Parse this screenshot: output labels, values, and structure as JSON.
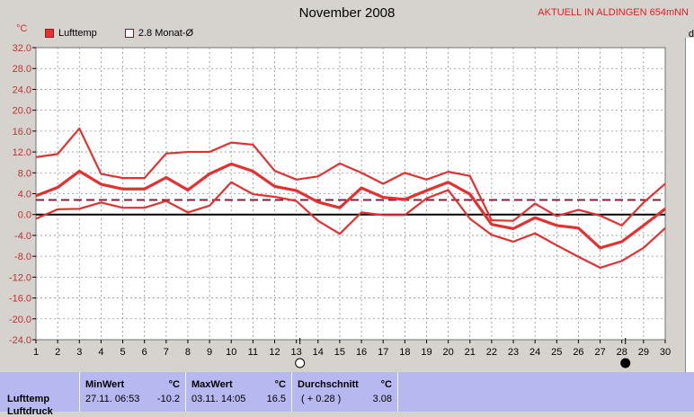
{
  "title": "November 2008",
  "location": "AKTUELL IN ALDINGEN 654mNN",
  "unit_label": "°C",
  "right_cut_label": "d",
  "legend": [
    {
      "label": "Lufttemp",
      "color": "#e53030"
    },
    {
      "label": "2.8 Monat-Ø",
      "color": "#802040"
    }
  ],
  "colors": {
    "series": "#e53030",
    "avg_line": "#802040",
    "zero_line": "#000000",
    "grid": "#909090"
  },
  "chart_data": {
    "type": "line",
    "x": [
      1,
      2,
      3,
      4,
      5,
      6,
      7,
      8,
      9,
      10,
      11,
      12,
      13,
      14,
      15,
      16,
      17,
      18,
      19,
      20,
      21,
      22,
      23,
      24,
      25,
      26,
      27,
      28,
      29,
      30
    ],
    "xlim": [
      1,
      30
    ],
    "ylim": [
      -24,
      32
    ],
    "yticks": [
      "32.0",
      "28.0",
      "24.0",
      "20.0",
      "16.0",
      "12.0",
      "8.0",
      "4.0",
      "0.0",
      "-4.0",
      "-8.0",
      "-12.0",
      "-16.0",
      "-20.0",
      "-24.0"
    ],
    "grid": true,
    "reference_lines": [
      {
        "y": 2.8,
        "style": "dashed"
      },
      {
        "y": 0,
        "style": "solid"
      }
    ],
    "series": [
      {
        "values": [
          11.0,
          11.6,
          16.5,
          7.8,
          7.0,
          7.0,
          11.7,
          12.0,
          12.0,
          13.8,
          13.4,
          8.4,
          6.7,
          7.3,
          9.8,
          8.0,
          5.9,
          8.0,
          6.7,
          8.2,
          7.4,
          -1.1,
          -1.2,
          2.1,
          -0.3,
          0.9,
          -0.2,
          -2.1,
          2.3,
          5.9
        ]
      },
      {
        "values": [
          3.6,
          5.2,
          8.3,
          5.8,
          4.9,
          4.9,
          7.1,
          4.7,
          7.8,
          9.7,
          8.3,
          5.4,
          4.6,
          2.4,
          1.3,
          5.1,
          3.3,
          2.9,
          4.6,
          6.2,
          3.9,
          -1.9,
          -2.7,
          -0.6,
          -2.1,
          -2.6,
          -6.4,
          -5.2,
          -2.1,
          1.1
        ]
      },
      {
        "values": [
          -0.8,
          1.0,
          1.1,
          2.3,
          1.3,
          1.3,
          2.6,
          0.4,
          1.7,
          6.2,
          3.9,
          3.4,
          2.6,
          -1.2,
          -3.7,
          0.4,
          -0.1,
          -0.1,
          3.1,
          4.7,
          -0.8,
          -3.9,
          -5.2,
          -3.6,
          -5.9,
          -8.1,
          -10.2,
          -8.9,
          -6.4,
          -2.6
        ]
      }
    ],
    "annotations": [
      {
        "x": 13,
        "label": "full-moon-icon"
      },
      {
        "x": 28,
        "label": "new-moon-icon"
      }
    ]
  },
  "stats": {
    "row_label": "Lufttemp",
    "row_label_cut": "Luftdruck",
    "min": {
      "header": "MinWert",
      "unit": "°C",
      "time": "27.11.  06:53",
      "value": "-10.2"
    },
    "max": {
      "header": "MaxWert",
      "unit": "°C",
      "time": "03.11.  14:05",
      "value": "16.5"
    },
    "avg": {
      "header": "Durchschnitt",
      "unit": "°C",
      "diff": "( + 0.28 )",
      "value": "3.08"
    }
  }
}
